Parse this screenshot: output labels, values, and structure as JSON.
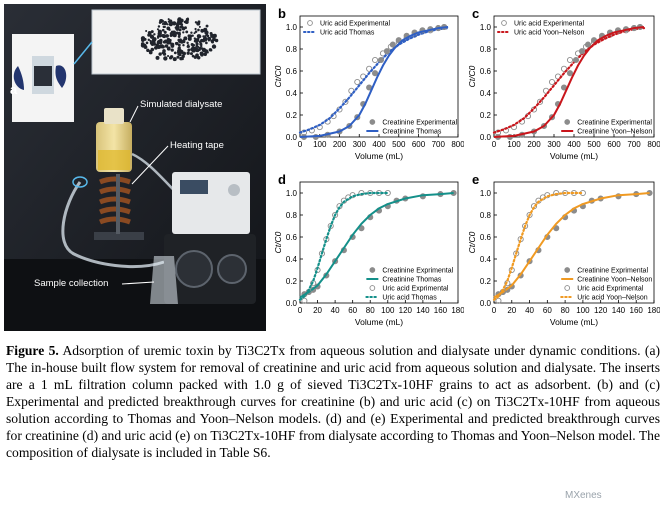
{
  "panel_a": {
    "label": "a",
    "annotations": [
      "Simulated dialysate",
      "Heating tape",
      "Sample collection"
    ]
  },
  "chart_data": [
    {
      "id": "b",
      "label": "b",
      "type": "scatter",
      "xlabel": "Volume (mL)",
      "ylabel": "Ct/C0",
      "xlim": [
        0,
        800
      ],
      "ylim": [
        0,
        1.1
      ],
      "xticks": [
        0,
        100,
        200,
        300,
        400,
        500,
        600,
        700,
        800
      ],
      "yticks": [
        0.0,
        0.2,
        0.4,
        0.6,
        0.8,
        1.0
      ],
      "fit_color": "#2f5fc4",
      "legend_top": [
        "Uric acid Experimental",
        "Uric acid Thomas"
      ],
      "legend_bottom": [
        "Creatinine Experimental",
        "Creatinine Thomas"
      ],
      "series": [
        {
          "name": "Uric acid Experimental",
          "style": "open",
          "x": [
            20,
            60,
            100,
            140,
            170,
            200,
            230,
            260,
            290,
            320,
            350,
            380,
            420,
            460,
            500,
            540,
            580,
            620,
            660,
            700,
            730
          ],
          "y": [
            0.04,
            0.06,
            0.09,
            0.14,
            0.19,
            0.25,
            0.32,
            0.42,
            0.5,
            0.55,
            0.62,
            0.7,
            0.76,
            0.82,
            0.86,
            0.9,
            0.93,
            0.96,
            0.97,
            0.99,
            1.0
          ]
        },
        {
          "name": "Uric acid Thomas",
          "style": "dotted",
          "x": [
            0,
            50,
            100,
            150,
            200,
            250,
            300,
            350,
            400,
            450,
            500,
            550,
            600,
            650,
            700,
            750
          ],
          "y": [
            0.04,
            0.07,
            0.11,
            0.17,
            0.26,
            0.36,
            0.47,
            0.58,
            0.68,
            0.77,
            0.84,
            0.89,
            0.93,
            0.96,
            0.98,
            0.99
          ]
        },
        {
          "name": "Creatinine Experimental",
          "style": "filled",
          "x": [
            20,
            80,
            140,
            200,
            250,
            290,
            320,
            350,
            380,
            410,
            440,
            470,
            500,
            540,
            580,
            620,
            660,
            700,
            730
          ],
          "y": [
            0.0,
            0.0,
            0.02,
            0.05,
            0.1,
            0.18,
            0.3,
            0.45,
            0.58,
            0.7,
            0.78,
            0.84,
            0.88,
            0.92,
            0.95,
            0.97,
            0.98,
            0.99,
            1.0
          ]
        },
        {
          "name": "Creatinine Thomas",
          "style": "solid",
          "x": [
            0,
            100,
            200,
            250,
            300,
            330,
            360,
            390,
            420,
            450,
            480,
            520,
            560,
            600,
            650,
            700,
            750
          ],
          "y": [
            0.0,
            0.01,
            0.05,
            0.1,
            0.2,
            0.3,
            0.42,
            0.54,
            0.65,
            0.74,
            0.81,
            0.88,
            0.92,
            0.95,
            0.97,
            0.99,
            1.0
          ]
        }
      ]
    },
    {
      "id": "c",
      "label": "c",
      "type": "scatter",
      "xlabel": "Volume (mL)",
      "ylabel": "Ct/C0",
      "xlim": [
        0,
        800
      ],
      "ylim": [
        0,
        1.1
      ],
      "xticks": [
        0,
        100,
        200,
        300,
        400,
        500,
        600,
        700,
        800
      ],
      "yticks": [
        0.0,
        0.2,
        0.4,
        0.6,
        0.8,
        1.0
      ],
      "fit_color": "#c9161c",
      "legend_top": [
        "Uric acid Experimental",
        "Uric acid Yoon–Nelson"
      ],
      "legend_bottom": [
        "Creatinine Experimental",
        "Creatinine Yoon–Nelson"
      ],
      "series": [
        {
          "name": "Uric acid Experimental",
          "style": "open",
          "x": [
            20,
            60,
            100,
            140,
            170,
            200,
            230,
            260,
            290,
            320,
            350,
            380,
            420,
            460,
            500,
            540,
            580,
            620,
            660,
            700,
            730
          ],
          "y": [
            0.04,
            0.06,
            0.09,
            0.14,
            0.19,
            0.25,
            0.32,
            0.42,
            0.5,
            0.55,
            0.62,
            0.7,
            0.76,
            0.82,
            0.86,
            0.9,
            0.93,
            0.96,
            0.97,
            0.99,
            1.0
          ]
        },
        {
          "name": "Uric acid Yoon–Nelson",
          "style": "dotted",
          "x": [
            0,
            50,
            100,
            150,
            200,
            250,
            300,
            350,
            400,
            450,
            500,
            550,
            600,
            650,
            700,
            750
          ],
          "y": [
            0.04,
            0.07,
            0.11,
            0.17,
            0.26,
            0.36,
            0.47,
            0.58,
            0.68,
            0.77,
            0.84,
            0.89,
            0.93,
            0.96,
            0.98,
            0.99
          ]
        },
        {
          "name": "Creatinine Experimental",
          "style": "filled",
          "x": [
            20,
            80,
            140,
            200,
            250,
            290,
            320,
            350,
            380,
            410,
            440,
            470,
            500,
            540,
            580,
            620,
            660,
            700,
            730
          ],
          "y": [
            0.0,
            0.0,
            0.02,
            0.05,
            0.1,
            0.18,
            0.3,
            0.45,
            0.58,
            0.7,
            0.78,
            0.84,
            0.88,
            0.92,
            0.95,
            0.97,
            0.98,
            0.99,
            1.0
          ]
        },
        {
          "name": "Creatinine Yoon–Nelson",
          "style": "solid",
          "x": [
            0,
            100,
            200,
            250,
            300,
            330,
            360,
            390,
            420,
            450,
            480,
            520,
            560,
            600,
            650,
            700,
            750
          ],
          "y": [
            0.0,
            0.01,
            0.05,
            0.1,
            0.2,
            0.3,
            0.42,
            0.54,
            0.65,
            0.74,
            0.81,
            0.88,
            0.92,
            0.95,
            0.97,
            0.99,
            1.0
          ]
        }
      ]
    },
    {
      "id": "d",
      "label": "d",
      "type": "scatter",
      "xlabel": "Volume (mL)",
      "ylabel": "Ct/C0",
      "xlim": [
        0,
        180
      ],
      "ylim": [
        0,
        1.1
      ],
      "xticks": [
        0,
        20,
        40,
        60,
        80,
        100,
        120,
        140,
        160,
        180
      ],
      "yticks": [
        0.0,
        0.2,
        0.4,
        0.6,
        0.8,
        1.0
      ],
      "fit_color": "#14908a",
      "legend_top": [],
      "legend_bottom": [
        "Creatinine Exprimental",
        "Creatinine Thomas",
        "Uric acid Exprimental",
        "Uric acid Thomas"
      ],
      "series": [
        {
          "name": "Creatinine Exprimental",
          "style": "filled",
          "x": [
            5,
            10,
            15,
            20,
            30,
            40,
            50,
            60,
            70,
            80,
            90,
            100,
            110,
            120,
            140,
            160,
            175
          ],
          "y": [
            0.08,
            0.1,
            0.12,
            0.15,
            0.25,
            0.38,
            0.48,
            0.6,
            0.68,
            0.78,
            0.84,
            0.88,
            0.93,
            0.95,
            0.97,
            0.99,
            1.0
          ]
        },
        {
          "name": "Creatinine Thomas",
          "style": "solid",
          "x": [
            0,
            10,
            20,
            30,
            40,
            50,
            60,
            70,
            80,
            90,
            100,
            120,
            140,
            160,
            175
          ],
          "y": [
            0.05,
            0.1,
            0.16,
            0.26,
            0.38,
            0.5,
            0.62,
            0.72,
            0.8,
            0.86,
            0.9,
            0.95,
            0.98,
            0.99,
            1.0
          ]
        },
        {
          "name": "Uric acid Exprimental",
          "style": "open",
          "x": [
            5,
            10,
            15,
            20,
            25,
            30,
            35,
            40,
            45,
            50,
            55,
            60,
            70,
            80,
            90,
            100
          ],
          "y": [
            0.02,
            0.1,
            0.18,
            0.3,
            0.45,
            0.58,
            0.7,
            0.8,
            0.88,
            0.93,
            0.96,
            0.98,
            1.0,
            1.0,
            1.0,
            1.0
          ]
        },
        {
          "name": "Uric acid Thomas",
          "style": "dotted",
          "x": [
            0,
            5,
            10,
            15,
            20,
            25,
            30,
            35,
            40,
            45,
            50,
            60,
            70,
            80,
            90,
            100
          ],
          "y": [
            0.03,
            0.06,
            0.12,
            0.2,
            0.32,
            0.45,
            0.58,
            0.7,
            0.8,
            0.87,
            0.92,
            0.97,
            0.99,
            1.0,
            1.0,
            1.0
          ]
        }
      ]
    },
    {
      "id": "e",
      "label": "e",
      "type": "scatter",
      "xlabel": "Volume (mL)",
      "ylabel": "Ct/C0",
      "xlim": [
        0,
        180
      ],
      "ylim": [
        0,
        1.1
      ],
      "xticks": [
        0,
        20,
        40,
        60,
        80,
        100,
        120,
        140,
        160,
        180
      ],
      "yticks": [
        0.0,
        0.2,
        0.4,
        0.6,
        0.8,
        1.0
      ],
      "fit_color": "#f09a22",
      "legend_top": [],
      "legend_bottom": [
        "Creatinine Exprimental",
        "Creatinine Yoon–Nelson",
        "Uric acid Exprimental",
        "Uric acid Yoon–Nelson"
      ],
      "series": [
        {
          "name": "Creatinine Exprimental",
          "style": "filled",
          "x": [
            5,
            10,
            15,
            20,
            30,
            40,
            50,
            60,
            70,
            80,
            90,
            100,
            110,
            120,
            140,
            160,
            175
          ],
          "y": [
            0.08,
            0.1,
            0.12,
            0.15,
            0.25,
            0.38,
            0.48,
            0.6,
            0.68,
            0.78,
            0.84,
            0.88,
            0.93,
            0.95,
            0.97,
            0.99,
            1.0
          ]
        },
        {
          "name": "Creatinine Yoon–Nelson",
          "style": "solid",
          "x": [
            0,
            10,
            20,
            30,
            40,
            50,
            60,
            70,
            80,
            90,
            100,
            120,
            140,
            160,
            175
          ],
          "y": [
            0.05,
            0.1,
            0.16,
            0.26,
            0.38,
            0.5,
            0.62,
            0.72,
            0.8,
            0.86,
            0.9,
            0.95,
            0.98,
            0.99,
            1.0
          ]
        },
        {
          "name": "Uric acid Exprimental",
          "style": "open",
          "x": [
            5,
            10,
            15,
            20,
            25,
            30,
            35,
            40,
            45,
            50,
            55,
            60,
            70,
            80,
            90,
            100
          ],
          "y": [
            0.02,
            0.1,
            0.18,
            0.3,
            0.45,
            0.58,
            0.7,
            0.8,
            0.88,
            0.93,
            0.96,
            0.98,
            1.0,
            1.0,
            1.0,
            1.0
          ]
        },
        {
          "name": "Uric acid Yoon–Nelson",
          "style": "dotted",
          "x": [
            0,
            5,
            10,
            15,
            20,
            25,
            30,
            35,
            40,
            45,
            50,
            60,
            70,
            80,
            90,
            100
          ],
          "y": [
            0.03,
            0.06,
            0.12,
            0.2,
            0.32,
            0.45,
            0.58,
            0.7,
            0.8,
            0.87,
            0.92,
            0.97,
            0.99,
            1.0,
            1.0,
            1.0
          ]
        }
      ]
    }
  ],
  "caption": {
    "figure_label": "Figure 5.",
    "text": "Adsorption of uremic toxin by Ti3C2Tx from aqueous solution and dialysate under dynamic conditions. (a) The in-house built flow system for removal of creatinine and uric acid from aqueous solution and dialysate. The inserts are a 1 mL filtration column packed with 1.0 g of sieved Ti3C2Tx-10HF grains to act as adsorbent. (b) and (c) Experimental and predicted breakthrough curves for creatinine (b) and uric acid (c) on Ti3C2Tx-10HF from aqueous solution according to Thomas and Yoon–Nelson models. (d) and (e) Experimental and predicted breakthrough curves for creatinine (d) and uric acid (e) on Ti3C2Tx-10HF from dialysate according to Thomas and Yoon–Nelson model. The composition of dialysate is included in Table S6."
  },
  "watermark": "MXenes"
}
